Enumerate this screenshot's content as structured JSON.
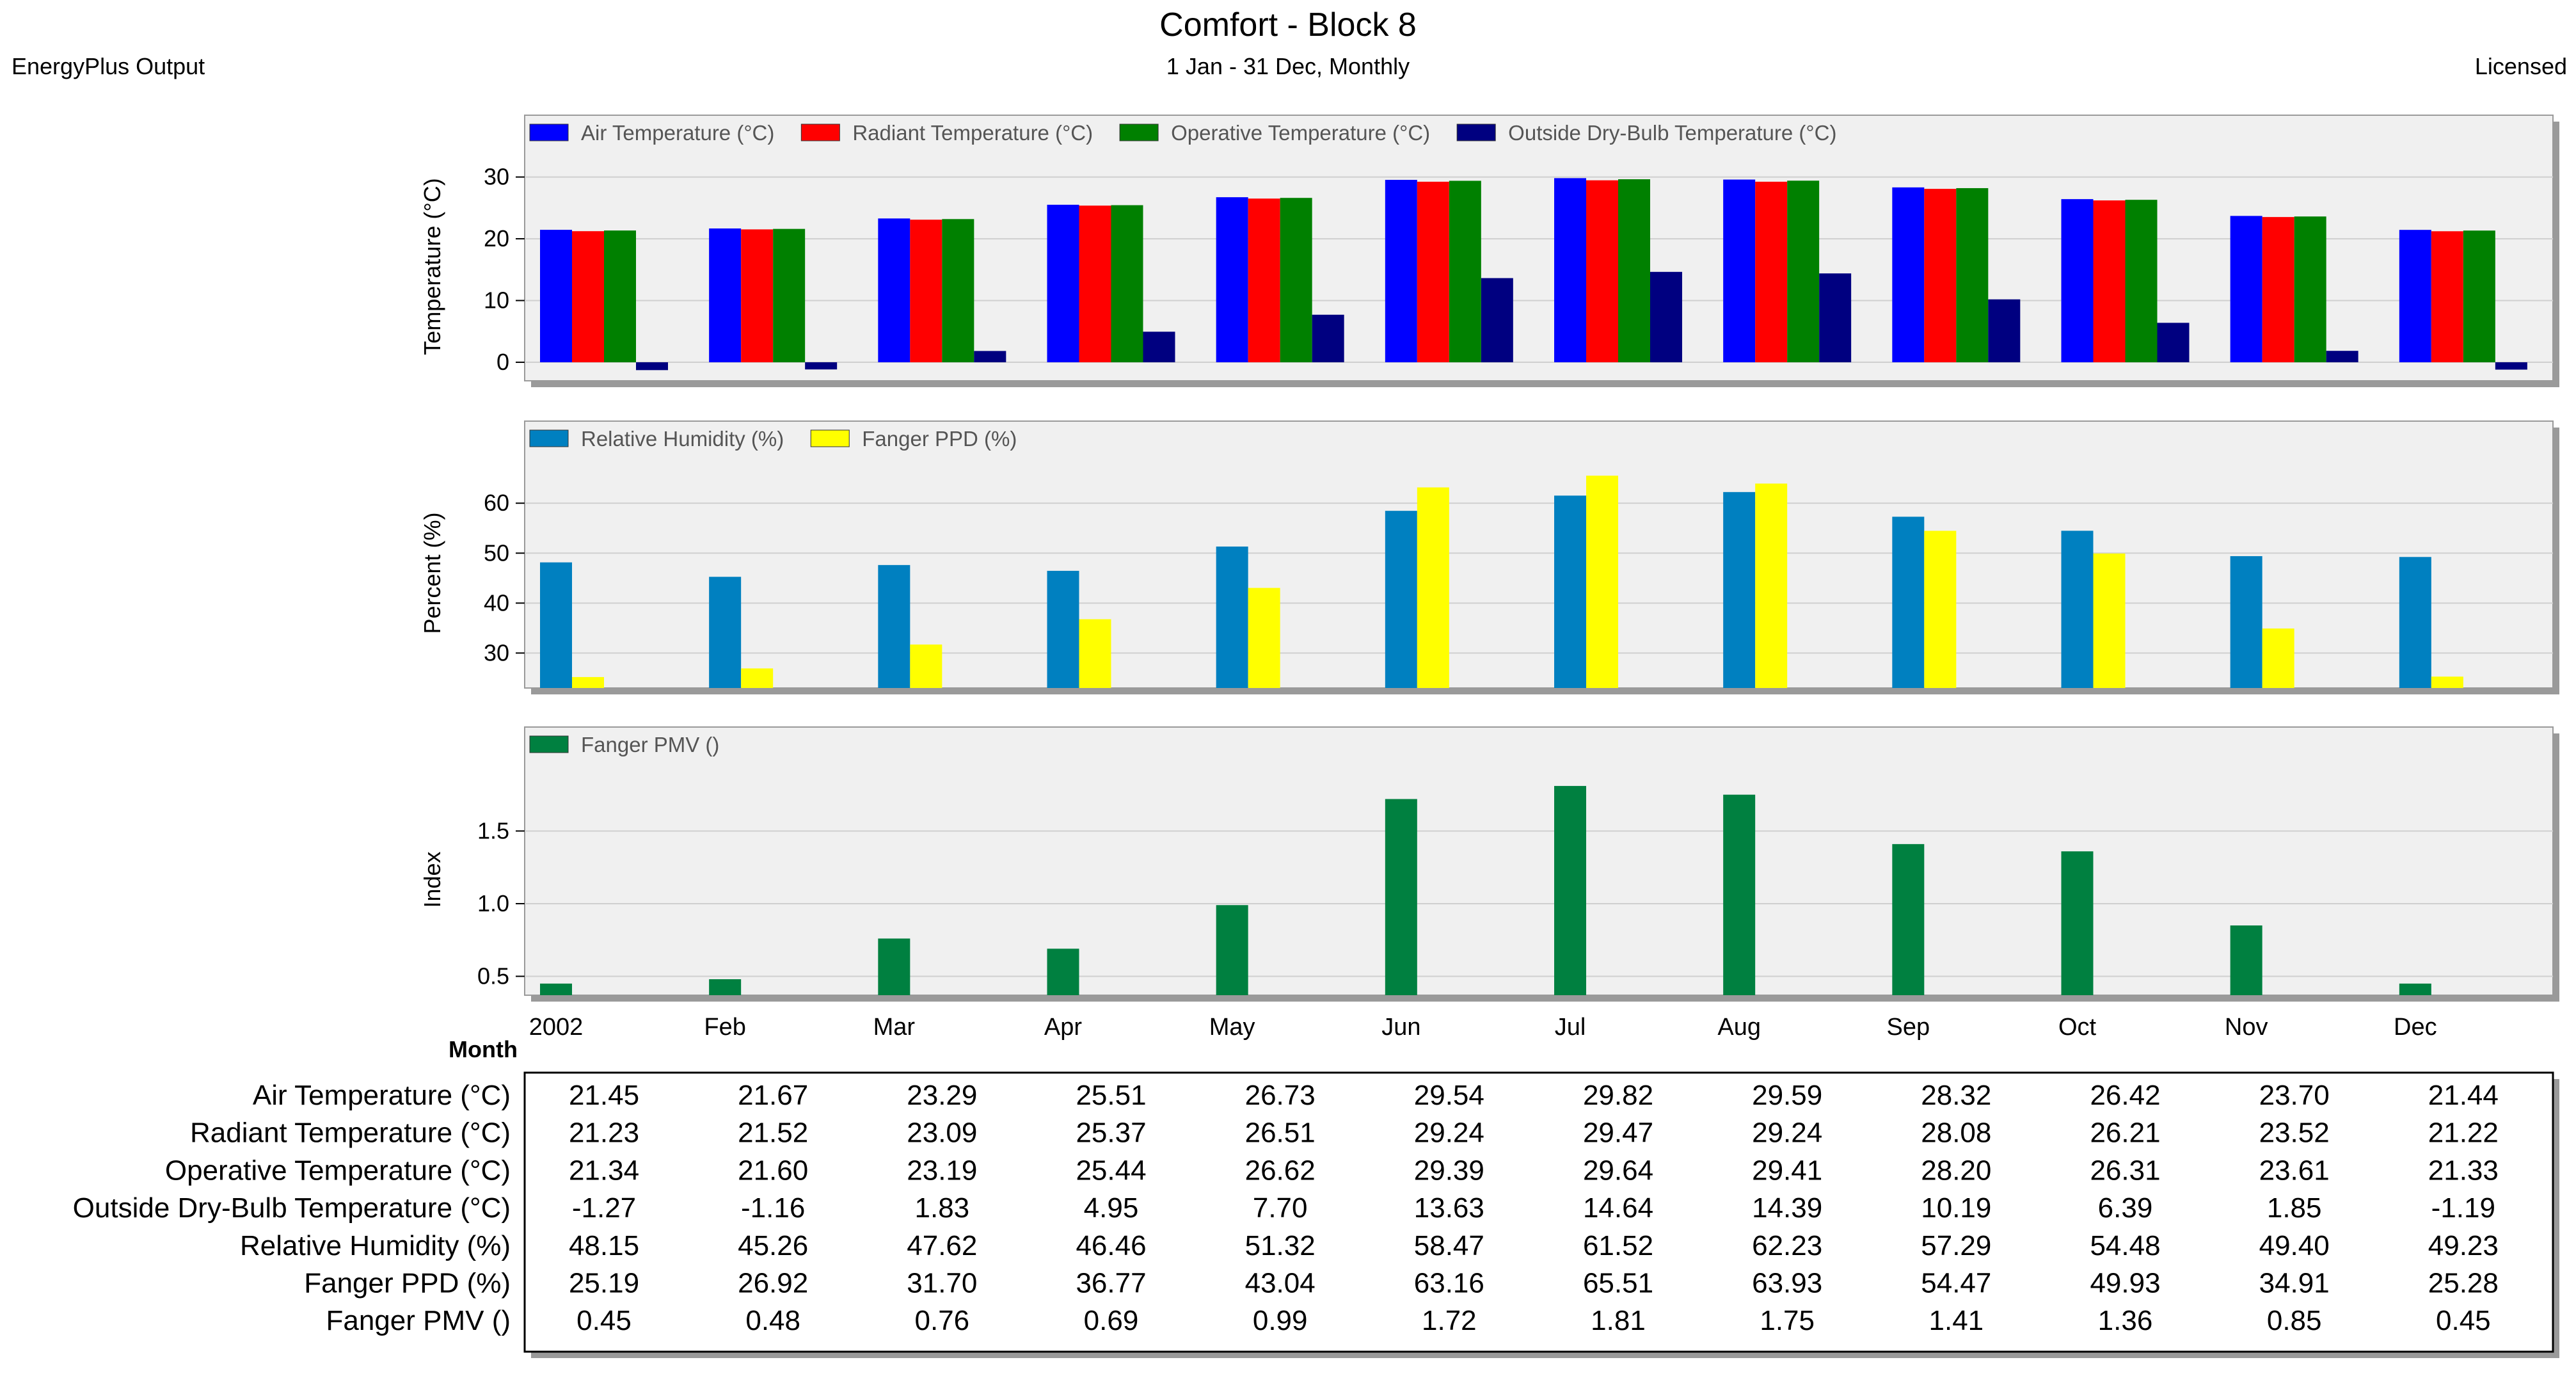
{
  "header": {
    "title": "Comfort - Block 8",
    "subtitle": "1 Jan - 31 Dec, Monthly",
    "left_label": "EnergyPlus Output",
    "right_label": "Licensed"
  },
  "chart_data": [
    {
      "type": "bar",
      "ylabel": "Temperature (°C)",
      "ylim": [
        -3,
        34
      ],
      "yticks": [
        0,
        10,
        20,
        30
      ],
      "legend_position": "top",
      "grid": true,
      "categories": [
        "2002",
        "Feb",
        "Mar",
        "Apr",
        "May",
        "Jun",
        "Jul",
        "Aug",
        "Sep",
        "Oct",
        "Nov",
        "Dec"
      ],
      "series": [
        {
          "name": "Air Temperature (°C)",
          "color": "#0000ff",
          "values": [
            21.45,
            21.67,
            23.29,
            25.51,
            26.73,
            29.54,
            29.82,
            29.59,
            28.32,
            26.42,
            23.7,
            21.44
          ]
        },
        {
          "name": "Radiant Temperature (°C)",
          "color": "#ff0000",
          "values": [
            21.23,
            21.52,
            23.09,
            25.37,
            26.51,
            29.24,
            29.47,
            29.24,
            28.08,
            26.21,
            23.52,
            21.22
          ]
        },
        {
          "name": "Operative Temperature (°C)",
          "color": "#008000",
          "values": [
            21.34,
            21.6,
            23.19,
            25.44,
            26.62,
            29.39,
            29.64,
            29.41,
            28.2,
            26.31,
            23.61,
            21.33
          ]
        },
        {
          "name": "Outside Dry-Bulb Temperature (°C)",
          "color": "#000080",
          "values": [
            -1.27,
            -1.16,
            1.83,
            4.95,
            7.7,
            13.63,
            14.64,
            14.39,
            10.19,
            6.39,
            1.85,
            -1.19
          ]
        }
      ]
    },
    {
      "type": "bar",
      "ylabel": "Percent (%)",
      "ylim": [
        23,
        69
      ],
      "yticks": [
        30,
        40,
        50,
        60
      ],
      "legend_position": "top",
      "grid": true,
      "categories": [
        "2002",
        "Feb",
        "Mar",
        "Apr",
        "May",
        "Jun",
        "Jul",
        "Aug",
        "Sep",
        "Oct",
        "Nov",
        "Dec"
      ],
      "series": [
        {
          "name": "Relative Humidity (%)",
          "color": "#0080c0",
          "values": [
            48.15,
            45.26,
            47.62,
            46.46,
            51.32,
            58.47,
            61.52,
            62.23,
            57.29,
            54.48,
            49.4,
            49.23
          ]
        },
        {
          "name": "Fanger PPD (%)",
          "color": "#ffff00",
          "values": [
            25.19,
            26.92,
            31.7,
            36.77,
            43.04,
            63.16,
            65.51,
            63.93,
            54.47,
            49.93,
            34.91,
            25.28
          ]
        }
      ]
    },
    {
      "type": "bar",
      "ylabel": "Index",
      "ylim": [
        0.37,
        1.96
      ],
      "yticks": [
        0.5,
        1.0,
        1.5
      ],
      "legend_position": "top",
      "grid": true,
      "xlabel": "Month",
      "categories": [
        "2002",
        "Feb",
        "Mar",
        "Apr",
        "May",
        "Jun",
        "Jul",
        "Aug",
        "Sep",
        "Oct",
        "Nov",
        "Dec"
      ],
      "series": [
        {
          "name": "Fanger PMV ()",
          "color": "#008040",
          "values": [
            0.45,
            0.48,
            0.76,
            0.69,
            0.99,
            1.72,
            1.81,
            1.75,
            1.41,
            1.36,
            0.85,
            0.45
          ]
        }
      ]
    }
  ],
  "table": {
    "rows": [
      {
        "label": "Air Temperature (°C)",
        "values": [
          "21.45",
          "21.67",
          "23.29",
          "25.51",
          "26.73",
          "29.54",
          "29.82",
          "29.59",
          "28.32",
          "26.42",
          "23.70",
          "21.44"
        ]
      },
      {
        "label": "Radiant Temperature (°C)",
        "values": [
          "21.23",
          "21.52",
          "23.09",
          "25.37",
          "26.51",
          "29.24",
          "29.47",
          "29.24",
          "28.08",
          "26.21",
          "23.52",
          "21.22"
        ]
      },
      {
        "label": "Operative Temperature (°C)",
        "values": [
          "21.34",
          "21.60",
          "23.19",
          "25.44",
          "26.62",
          "29.39",
          "29.64",
          "29.41",
          "28.20",
          "26.31",
          "23.61",
          "21.33"
        ]
      },
      {
        "label": "Outside Dry-Bulb Temperature (°C)",
        "values": [
          "-1.27",
          "-1.16",
          "1.83",
          "4.95",
          "7.70",
          "13.63",
          "14.64",
          "14.39",
          "10.19",
          "6.39",
          "1.85",
          "-1.19"
        ]
      },
      {
        "label": "Relative Humidity (%)",
        "values": [
          "48.15",
          "45.26",
          "47.62",
          "46.46",
          "51.32",
          "58.47",
          "61.52",
          "62.23",
          "57.29",
          "54.48",
          "49.40",
          "49.23"
        ]
      },
      {
        "label": "Fanger PPD (%)",
        "values": [
          "25.19",
          "26.92",
          "31.70",
          "36.77",
          "43.04",
          "63.16",
          "65.51",
          "63.93",
          "54.47",
          "49.93",
          "34.91",
          "25.28"
        ]
      },
      {
        "label": "Fanger PMV ()",
        "values": [
          "0.45",
          "0.48",
          "0.76",
          "0.69",
          "0.99",
          "1.72",
          "1.81",
          "1.75",
          "1.41",
          "1.36",
          "0.85",
          "0.45"
        ]
      }
    ]
  }
}
